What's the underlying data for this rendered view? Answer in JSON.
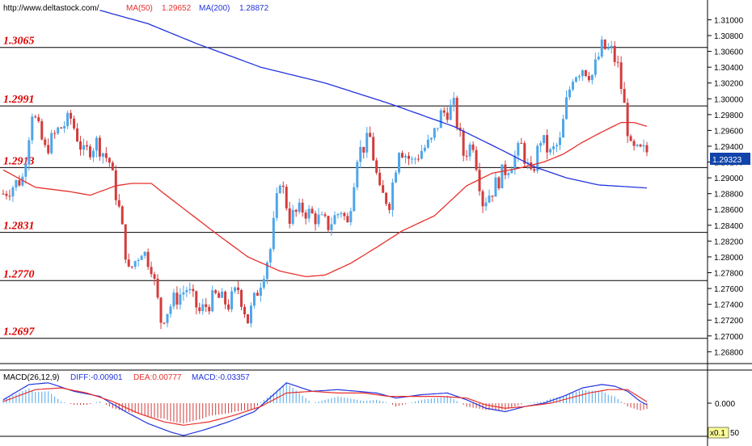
{
  "header": {
    "url": "http://www.deltastock.com/",
    "ma50_label": "MA(50)",
    "ma50_value": "1.29652",
    "ma200_label": "MA(200)",
    "ma200_value": "1.28872"
  },
  "macd_header": {
    "label": "MACD(26,12,9)",
    "diff": "DIFF:-0.00901",
    "dea": "DEA:0.00777",
    "macd": "MACD:-0.03357"
  },
  "current_price": "1.29323",
  "macd_zero_label": "0.000",
  "scale_label": "x0.1",
  "scale_suffix": "50",
  "colors": {
    "up": "#4ea6ea",
    "down": "#d23c3c",
    "ma50": "#e8302c",
    "ma200": "#2233dd",
    "level_text": "#dd0000",
    "price_tag": "#1144aa"
  },
  "chart_data": {
    "type": "candlestick",
    "ylim": [
      1.2665,
      1.3125
    ],
    "y_ticks": [
      "1.31000",
      "1.30800",
      "1.30600",
      "1.30400",
      "1.30200",
      "1.30000",
      "1.29800",
      "1.29600",
      "1.29400",
      "1.29200",
      "1.29000",
      "1.28800",
      "1.28600",
      "1.28400",
      "1.28200",
      "1.28000",
      "1.27800",
      "1.27600",
      "1.27400",
      "1.27200",
      "1.27000",
      "1.26800"
    ],
    "levels": [
      {
        "label": "1.3065",
        "value": 1.3065
      },
      {
        "label": "1.2991",
        "value": 1.2991
      },
      {
        "label": "1.2913",
        "value": 1.2913
      },
      {
        "label": "1.2831",
        "value": 1.2831
      },
      {
        "label": "1.2770",
        "value": 1.277
      },
      {
        "label": "1.2697",
        "value": 1.2697
      }
    ],
    "close_anchors": [
      [
        0,
        1.288
      ],
      [
        6,
        1.29
      ],
      [
        9,
        1.2985
      ],
      [
        13,
        1.2935
      ],
      [
        17,
        1.296
      ],
      [
        21,
        1.2975
      ],
      [
        25,
        1.293
      ],
      [
        29,
        1.2945
      ],
      [
        33,
        1.292
      ],
      [
        36,
        1.286
      ],
      [
        39,
        1.278
      ],
      [
        43,
        1.281
      ],
      [
        46,
        1.279
      ],
      [
        49,
        1.272
      ],
      [
        53,
        1.2745
      ],
      [
        57,
        1.276
      ],
      [
        61,
        1.273
      ],
      [
        66,
        1.275
      ],
      [
        70,
        1.274
      ],
      [
        73,
        1.276
      ],
      [
        76,
        1.272
      ],
      [
        80,
        1.277
      ],
      [
        83,
        1.281
      ],
      [
        86,
        1.29
      ],
      [
        89,
        1.285
      ],
      [
        93,
        1.286
      ],
      [
        97,
        1.285
      ],
      [
        101,
        1.284
      ],
      [
        105,
        1.286
      ],
      [
        107,
        1.284
      ],
      [
        110,
        1.293
      ],
      [
        114,
        1.295
      ],
      [
        117,
        1.288
      ],
      [
        120,
        1.287
      ],
      [
        123,
        1.294
      ],
      [
        127,
        1.292
      ],
      [
        130,
        1.2935
      ],
      [
        133,
        1.2945
      ],
      [
        136,
        1.298
      ],
      [
        140,
        1.299
      ],
      [
        143,
        1.293
      ],
      [
        146,
        1.2945
      ],
      [
        149,
        1.287
      ],
      [
        152,
        1.2885
      ],
      [
        155,
        1.2905
      ],
      [
        158,
        1.292
      ],
      [
        161,
        1.294
      ],
      [
        164,
        1.29
      ],
      [
        167,
        1.295
      ],
      [
        170,
        1.293
      ],
      [
        173,
        1.2945
      ],
      [
        175,
        1.2995
      ],
      [
        177,
        1.303
      ],
      [
        180,
        1.304
      ],
      [
        183,
        1.303
      ],
      [
        186,
        1.3065
      ],
      [
        189,
        1.306
      ],
      [
        191,
        1.304
      ],
      [
        193,
        1.299
      ],
      [
        195,
        1.2935
      ],
      [
        197,
        1.2932
      ],
      [
        199,
        1.2933
      ],
      [
        200,
        1.29323
      ]
    ],
    "ma50_anchors": [
      [
        0,
        1.291
      ],
      [
        10,
        1.2888
      ],
      [
        20,
        1.2883
      ],
      [
        27,
        1.2878
      ],
      [
        35,
        1.289
      ],
      [
        40,
        1.2893
      ],
      [
        46,
        1.2893
      ],
      [
        50,
        1.288
      ],
      [
        58,
        1.2855
      ],
      [
        66,
        1.283
      ],
      [
        76,
        1.28
      ],
      [
        86,
        1.2782
      ],
      [
        94,
        1.2775
      ],
      [
        100,
        1.2777
      ],
      [
        108,
        1.2792
      ],
      [
        116,
        1.2812
      ],
      [
        124,
        1.2833
      ],
      [
        134,
        1.2852
      ],
      [
        144,
        1.289
      ],
      [
        152,
        1.2906
      ],
      [
        160,
        1.2912
      ],
      [
        168,
        1.292
      ],
      [
        174,
        1.293
      ],
      [
        180,
        1.2945
      ],
      [
        186,
        1.2958
      ],
      [
        192,
        1.297
      ],
      [
        196,
        1.297
      ],
      [
        200,
        1.29652
      ]
    ],
    "ma200_anchors": [
      [
        30,
        1.3112
      ],
      [
        45,
        1.3095
      ],
      [
        60,
        1.307
      ],
      [
        80,
        1.304
      ],
      [
        100,
        1.302
      ],
      [
        120,
        1.2994
      ],
      [
        140,
        1.2965
      ],
      [
        155,
        1.2935
      ],
      [
        165,
        1.2914
      ],
      [
        175,
        1.29
      ],
      [
        185,
        1.2891
      ],
      [
        200,
        1.28872
      ]
    ],
    "macd_diff_anchors": [
      [
        0,
        0.02
      ],
      [
        8,
        0.11
      ],
      [
        14,
        0.12
      ],
      [
        22,
        0.07
      ],
      [
        30,
        0.04
      ],
      [
        38,
        -0.05
      ],
      [
        45,
        -0.12
      ],
      [
        52,
        -0.17
      ],
      [
        56,
        -0.19
      ],
      [
        62,
        -0.16
      ],
      [
        70,
        -0.11
      ],
      [
        78,
        -0.05
      ],
      [
        84,
        0.05
      ],
      [
        88,
        0.12
      ],
      [
        96,
        0.07
      ],
      [
        104,
        0.08
      ],
      [
        110,
        0.07
      ],
      [
        116,
        0.06
      ],
      [
        122,
        0.03
      ],
      [
        130,
        0.05
      ],
      [
        138,
        0.06
      ],
      [
        144,
        0.02
      ],
      [
        150,
        -0.03
      ],
      [
        156,
        -0.05
      ],
      [
        162,
        -0.02
      ],
      [
        168,
        0.0
      ],
      [
        174,
        0.04
      ],
      [
        180,
        0.09
      ],
      [
        186,
        0.11
      ],
      [
        190,
        0.1
      ],
      [
        194,
        0.07
      ],
      [
        198,
        0.01
      ],
      [
        200,
        -0.009
      ]
    ],
    "macd_dea_anchors": [
      [
        0,
        0.01
      ],
      [
        10,
        0.08
      ],
      [
        18,
        0.09
      ],
      [
        26,
        0.06
      ],
      [
        34,
        0.01
      ],
      [
        42,
        -0.06
      ],
      [
        50,
        -0.11
      ],
      [
        56,
        -0.13
      ],
      [
        64,
        -0.11
      ],
      [
        72,
        -0.07
      ],
      [
        80,
        -0.02
      ],
      [
        88,
        0.06
      ],
      [
        96,
        0.07
      ],
      [
        104,
        0.06
      ],
      [
        112,
        0.06
      ],
      [
        120,
        0.04
      ],
      [
        128,
        0.04
      ],
      [
        136,
        0.04
      ],
      [
        144,
        0.03
      ],
      [
        150,
        -0.01
      ],
      [
        156,
        -0.03
      ],
      [
        162,
        -0.02
      ],
      [
        170,
        0.0
      ],
      [
        176,
        0.03
      ],
      [
        182,
        0.06
      ],
      [
        188,
        0.08
      ],
      [
        194,
        0.08
      ],
      [
        200,
        0.00777
      ]
    ]
  }
}
